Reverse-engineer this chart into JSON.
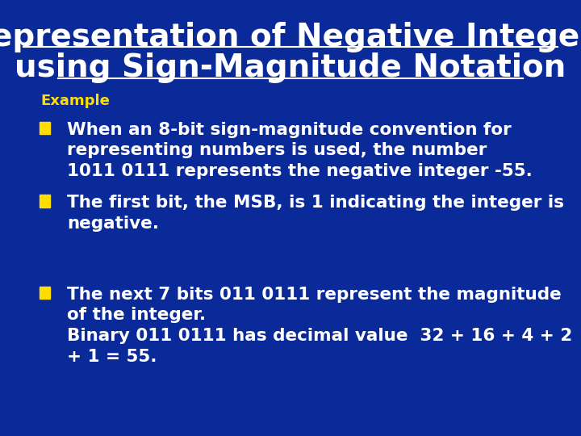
{
  "title_line1": "Representation of Negative Integers",
  "title_line2": "using Sign-Magnitude Notation",
  "bg_color": "#0a2a9a",
  "title_color": "#ffffff",
  "title_fontsize": 28,
  "example_label": "Example",
  "example_label_color": "#ffdd00",
  "example_label_fontsize": 13,
  "bullet_color": "#ffdd00",
  "bullet_text_color": "#ffffff",
  "bullet_fontsize": 15.5,
  "bullets": [
    "When an 8-bit sign-magnitude convention for\nrepresenting numbers is used, the number\n1011 0111 represents the negative integer -55.",
    "The first bit, the MSB, is 1 indicating the integer is\nnegative.",
    "The next 7 bits 011 0111 represent the magnitude\nof the integer.\nBinary 011 0111 has decimal value  32 + 16 + 4 + 2\n+ 1 = 55."
  ],
  "fig_width": 7.2,
  "fig_height": 5.4,
  "dpi": 100
}
